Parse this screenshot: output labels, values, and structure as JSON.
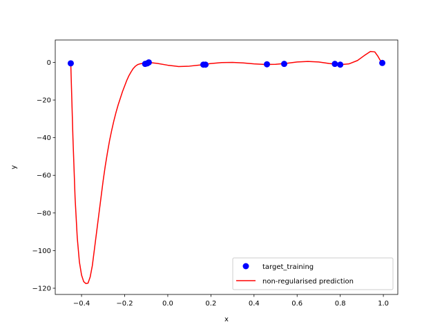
{
  "chart_data": {
    "type": "scatter+line",
    "xlabel": "x",
    "ylabel": "y",
    "xlim": [
      -0.522,
      1.067
    ],
    "ylim": [
      -123.3,
      11.9
    ],
    "xticks": [
      -0.4,
      -0.2,
      0.0,
      0.2,
      0.4,
      0.6,
      0.8,
      1.0
    ],
    "xtick_labels": [
      "−0.4",
      "−0.2",
      "0.0",
      "0.2",
      "0.4",
      "0.6",
      "0.8",
      "1.0"
    ],
    "yticks": [
      0,
      -20,
      -40,
      -60,
      -80,
      -100,
      -120
    ],
    "ytick_labels": [
      "0",
      "−20",
      "−40",
      "−60",
      "−80",
      "−100",
      "−120"
    ],
    "legend_position": "lower-right",
    "series": [
      {
        "name": "target_training",
        "kind": "scatter",
        "color": "#0000ff",
        "points": [
          [
            -0.45,
            -0.5
          ],
          [
            -0.105,
            -0.8
          ],
          [
            -0.095,
            -0.5
          ],
          [
            -0.088,
            0.0
          ],
          [
            0.165,
            -1.2
          ],
          [
            0.175,
            -1.2
          ],
          [
            0.46,
            -1.0
          ],
          [
            0.54,
            -0.8
          ],
          [
            0.775,
            -0.8
          ],
          [
            0.8,
            -1.2
          ],
          [
            0.995,
            -0.3
          ]
        ]
      },
      {
        "name": "non-regularised prediction",
        "kind": "line",
        "color": "#ff0000",
        "points": [
          [
            -0.45,
            -0.5
          ],
          [
            -0.44,
            -40
          ],
          [
            -0.43,
            -72
          ],
          [
            -0.42,
            -93
          ],
          [
            -0.41,
            -106
          ],
          [
            -0.4,
            -113
          ],
          [
            -0.39,
            -116.5
          ],
          [
            -0.38,
            -117.5
          ],
          [
            -0.37,
            -117.3
          ],
          [
            -0.36,
            -114
          ],
          [
            -0.35,
            -108
          ],
          [
            -0.34,
            -99
          ],
          [
            -0.33,
            -90
          ],
          [
            -0.32,
            -81
          ],
          [
            -0.31,
            -72
          ],
          [
            -0.3,
            -63
          ],
          [
            -0.29,
            -55
          ],
          [
            -0.28,
            -48
          ],
          [
            -0.27,
            -41.5
          ],
          [
            -0.26,
            -36
          ],
          [
            -0.25,
            -31
          ],
          [
            -0.24,
            -26.5
          ],
          [
            -0.23,
            -22.5
          ],
          [
            -0.22,
            -19
          ],
          [
            -0.21,
            -15.5
          ],
          [
            -0.2,
            -12.5
          ],
          [
            -0.19,
            -9.5
          ],
          [
            -0.18,
            -7
          ],
          [
            -0.17,
            -5
          ],
          [
            -0.16,
            -3.2
          ],
          [
            -0.15,
            -2
          ],
          [
            -0.14,
            -1.2
          ],
          [
            -0.13,
            -0.8
          ],
          [
            -0.12,
            -0.6
          ],
          [
            -0.11,
            -0.4
          ],
          [
            -0.1,
            -0.3
          ],
          [
            -0.09,
            0.0
          ],
          [
            -0.05,
            -0.5
          ],
          [
            0.0,
            -1.5
          ],
          [
            0.05,
            -2.2
          ],
          [
            0.1,
            -2.0
          ],
          [
            0.15,
            -1.4
          ],
          [
            0.2,
            -0.6
          ],
          [
            0.25,
            -0.1
          ],
          [
            0.3,
            0.0
          ],
          [
            0.35,
            -0.3
          ],
          [
            0.4,
            -0.8
          ],
          [
            0.45,
            -1.1
          ],
          [
            0.5,
            -1.0
          ],
          [
            0.55,
            -0.5
          ],
          [
            0.6,
            0.2
          ],
          [
            0.65,
            0.5
          ],
          [
            0.7,
            0.2
          ],
          [
            0.75,
            -0.6
          ],
          [
            0.8,
            -1.2
          ],
          [
            0.84,
            -0.8
          ],
          [
            0.88,
            1.0
          ],
          [
            0.91,
            3.5
          ],
          [
            0.94,
            5.8
          ],
          [
            0.96,
            5.6
          ],
          [
            0.975,
            3.2
          ],
          [
            0.985,
            1.2
          ],
          [
            0.995,
            -0.3
          ]
        ]
      }
    ]
  }
}
